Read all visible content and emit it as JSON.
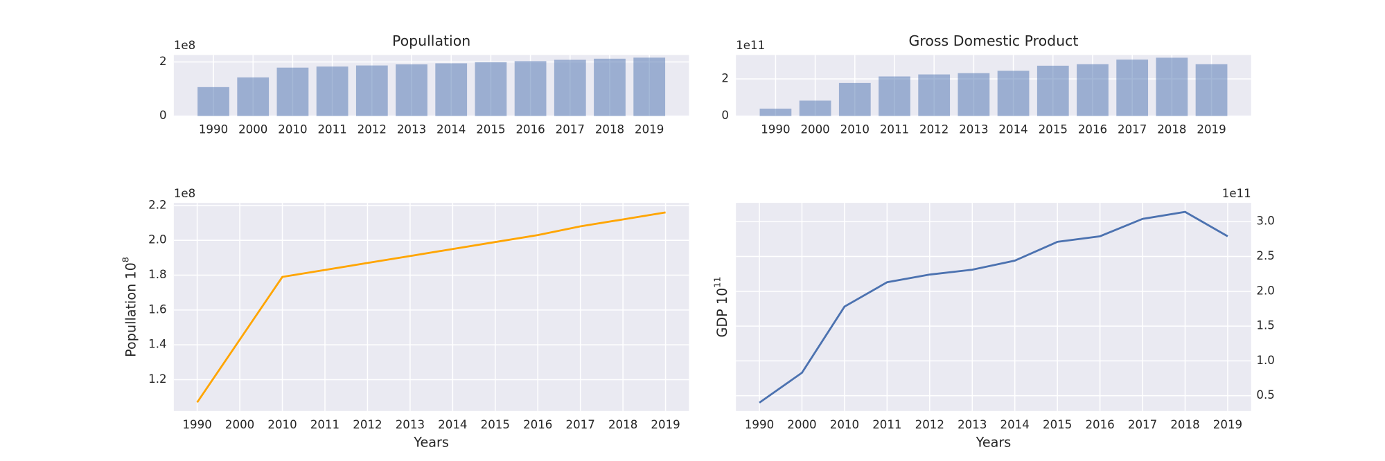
{
  "chart_data": [
    {
      "type": "bar",
      "title": "Popullation",
      "offset_text": "1e8",
      "categories": [
        "1990",
        "2000",
        "2010",
        "2011",
        "2012",
        "2013",
        "2014",
        "2015",
        "2016",
        "2017",
        "2018",
        "2019"
      ],
      "values": [
        1.07,
        1.43,
        1.79,
        1.83,
        1.87,
        1.91,
        1.95,
        1.99,
        2.03,
        2.08,
        2.12,
        2.16
      ],
      "color": "#4c72b0",
      "ylim": [
        0,
        2.26
      ],
      "yticks": [
        0,
        2
      ],
      "grid": true
    },
    {
      "type": "bar",
      "title": "Gross Domestic Product",
      "offset_text": "1e11",
      "categories": [
        "1990",
        "2000",
        "2010",
        "2011",
        "2012",
        "2013",
        "2014",
        "2015",
        "2016",
        "2017",
        "2018",
        "2019"
      ],
      "values": [
        0.4,
        0.83,
        1.78,
        2.13,
        2.24,
        2.31,
        2.44,
        2.71,
        2.79,
        3.04,
        3.14,
        2.79
      ],
      "color": "#4c72b0",
      "ylim": [
        0,
        3.29
      ],
      "yticks": [
        0,
        2
      ],
      "grid": true
    },
    {
      "type": "line",
      "offset_text": "1e8",
      "xlabel": "Years",
      "ylabel": "Popullation 10",
      "ylabel_exponent": "8",
      "categories": [
        "1990",
        "2000",
        "2010",
        "2011",
        "2012",
        "2013",
        "2014",
        "2015",
        "2016",
        "2017",
        "2018",
        "2019"
      ],
      "values": [
        1.07,
        1.43,
        1.79,
        1.83,
        1.87,
        1.91,
        1.95,
        1.99,
        2.03,
        2.08,
        2.12,
        2.16
      ],
      "color": "#ffa500",
      "ylim": [
        1.02,
        2.215
      ],
      "yticks": [
        1.2,
        1.4,
        1.6,
        1.8,
        {
          "value": 2,
          "label": "2.0"
        },
        2.2
      ],
      "yaxis_side": "left",
      "grid": true
    },
    {
      "type": "line",
      "offset_text": "1e11",
      "xlabel": "Years",
      "ylabel": "GDP 10",
      "ylabel_exponent": "11",
      "categories": [
        "1990",
        "2000",
        "2010",
        "2011",
        "2012",
        "2013",
        "2014",
        "2015",
        "2016",
        "2017",
        "2018",
        "2019"
      ],
      "values": [
        0.4,
        0.83,
        1.78,
        2.13,
        2.24,
        2.31,
        2.44,
        2.71,
        2.79,
        3.04,
        3.14,
        2.79
      ],
      "color": "#4c72b0",
      "ylim": [
        0.28,
        3.27
      ],
      "yticks": [
        0.5,
        {
          "value": 1,
          "label": "1.0"
        },
        1.5,
        {
          "value": 2,
          "label": "2.0"
        },
        2.5,
        {
          "value": 3,
          "label": "3.0"
        }
      ],
      "yaxis_side": "right",
      "grid": true
    }
  ]
}
